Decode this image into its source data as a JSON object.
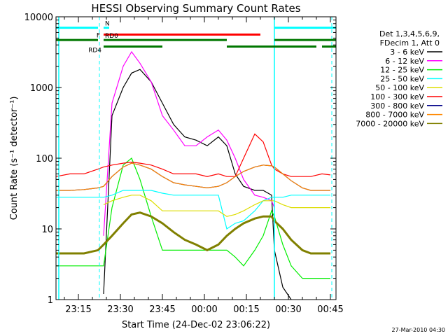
{
  "chart_data": {
    "type": "line",
    "title": "HESSI Observing Summary Count Rates",
    "xlabel": "Start Time (24-Dec-02 23:06:22)",
    "ylabel": "Count Rate (s⁻¹ detector⁻¹)",
    "y_scale": "log",
    "ylim": [
      1,
      10000
    ],
    "xlim": [
      "23:07",
      "00:47"
    ],
    "grid": false,
    "x_ticks": [
      "23:15",
      "23:30",
      "23:45",
      "00:00",
      "00:15",
      "00:30",
      "00:45"
    ],
    "y_ticks": [
      "1",
      "10",
      "100",
      "1000",
      "10000"
    ],
    "legend": {
      "title_lines": [
        "Det 1,3,4,5,6,9,",
        "FDecim 1, Att 0"
      ],
      "position": "right"
    },
    "footer": "27-Mar-2010 04:30",
    "x": [
      "23:07",
      "23:12",
      "23:17",
      "23:22",
      "23:24",
      "23:27",
      "23:31",
      "23:34",
      "23:37",
      "23:41",
      "23:45",
      "23:49",
      "23:53",
      "23:57",
      "00:01",
      "00:05",
      "00:08",
      "00:11",
      "00:14",
      "00:18",
      "00:21",
      "00:24",
      "00:25",
      "00:28",
      "00:31",
      "00:35",
      "00:38",
      "00:42",
      "00:45"
    ],
    "series": [
      {
        "name": "3 - 6 keV",
        "color": "#000000",
        "values": [
          null,
          null,
          null,
          null,
          1.2,
          400,
          1000,
          1600,
          1800,
          1200,
          600,
          300,
          200,
          180,
          150,
          200,
          150,
          60,
          40,
          35,
          35,
          30,
          5,
          1.5,
          1,
          null,
          null,
          null,
          null
        ]
      },
      {
        "name": "6 - 12 keV",
        "color": "#ff00ff",
        "values": [
          null,
          null,
          null,
          null,
          8,
          600,
          2000,
          3200,
          2200,
          1200,
          400,
          250,
          150,
          150,
          200,
          250,
          180,
          100,
          50,
          30,
          28,
          25,
          20,
          null,
          null,
          null,
          null,
          null,
          null
        ]
      },
      {
        "name": "12 - 25 keV",
        "color": "#00ee00",
        "values": [
          3,
          3,
          3,
          3,
          3,
          20,
          80,
          100,
          50,
          15,
          5,
          5,
          5,
          5,
          5,
          5,
          5,
          4,
          3,
          5,
          8,
          18,
          15,
          6,
          3,
          2,
          2,
          2,
          2
        ]
      },
      {
        "name": "25 - 50 keV",
        "color": "#00ffff",
        "values": [
          28,
          28,
          28,
          28,
          28,
          30,
          35,
          35,
          35,
          35,
          32,
          30,
          30,
          30,
          30,
          30,
          10,
          12,
          13,
          18,
          25,
          28,
          28,
          28,
          30,
          30,
          30,
          30,
          30
        ]
      },
      {
        "name": "50 - 100 keV",
        "color": "#dddd00",
        "values": [
          null,
          null,
          null,
          null,
          22,
          25,
          28,
          30,
          30,
          25,
          18,
          18,
          18,
          18,
          18,
          18,
          15,
          16,
          18,
          22,
          25,
          25,
          25,
          22,
          20,
          20,
          20,
          20,
          20
        ]
      },
      {
        "name": "100 - 300 keV",
        "color": "#ff0000",
        "values": [
          55,
          60,
          60,
          70,
          75,
          80,
          85,
          88,
          85,
          80,
          70,
          60,
          60,
          60,
          55,
          60,
          55,
          55,
          100,
          220,
          170,
          80,
          70,
          60,
          55,
          55,
          55,
          60,
          58
        ]
      },
      {
        "name": "300 - 800 keV",
        "color": "#000088",
        "values": [
          35,
          35,
          36,
          38,
          40,
          55,
          75,
          85,
          80,
          70,
          55,
          45,
          42,
          40,
          38,
          40,
          45,
          55,
          65,
          75,
          80,
          78,
          75,
          60,
          48,
          38,
          35,
          35,
          35
        ]
      },
      {
        "name": "800 - 7000 keV",
        "color": "#ff8800",
        "values": [
          35,
          35,
          36,
          38,
          40,
          55,
          75,
          85,
          80,
          70,
          55,
          45,
          42,
          40,
          38,
          40,
          45,
          55,
          65,
          75,
          80,
          78,
          75,
          60,
          48,
          38,
          35,
          35,
          35
        ]
      },
      {
        "name": "7000 - 20000 keV",
        "color": "#808000",
        "values": [
          4.5,
          4.5,
          4.5,
          5,
          6,
          8,
          12,
          16,
          17,
          15,
          12,
          9,
          7,
          6,
          5,
          6,
          8,
          10,
          12,
          14,
          15,
          15,
          13,
          10,
          7,
          5,
          4.5,
          4.5,
          4.5
        ]
      }
    ],
    "flag_lines": [
      {
        "label": "N",
        "color": "#00ffff",
        "level": 7000,
        "segments": [
          [
            "23:07",
            "23:22"
          ],
          [
            "23:24",
            "23:26"
          ],
          [
            "00:25",
            "00:47"
          ]
        ]
      },
      {
        "label": "F",
        "color": "#ff0000",
        "level": 5600,
        "segments": [
          [
            "23:24",
            "00:20"
          ]
        ]
      },
      {
        "label": "RD0",
        "color": "#007700",
        "level": 4700,
        "segments": [
          [
            "23:07",
            "23:22"
          ],
          [
            "23:24",
            "00:08"
          ],
          [
            "00:25",
            "00:47"
          ]
        ]
      },
      {
        "label": "RD4",
        "color": "#007700",
        "level": 3800,
        "segments": [
          [
            "23:24",
            "23:45"
          ],
          [
            "00:08",
            "00:40"
          ],
          [
            "00:42",
            "00:47"
          ]
        ]
      }
    ],
    "dashed_verticals": [
      {
        "x": "23:22.5",
        "color": "#00ffff"
      },
      {
        "x": "00:45.5",
        "color": "#00ffff"
      }
    ],
    "solid_verticals": [
      {
        "x": "23:08",
        "color": "#00ffff"
      },
      {
        "x": "00:25",
        "color": "#00ffff"
      }
    ]
  }
}
